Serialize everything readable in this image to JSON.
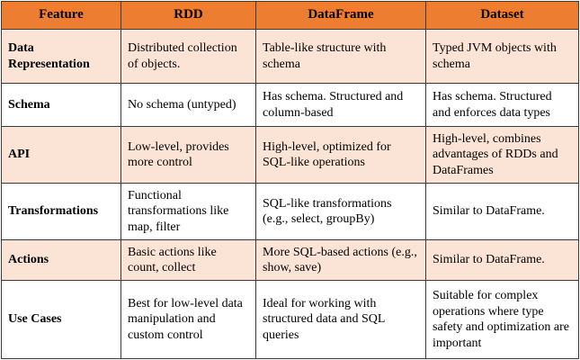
{
  "headers": [
    "Feature",
    "RDD",
    "DataFrame",
    "Dataset"
  ],
  "rows": [
    {
      "feature": "Data Representation",
      "rdd": "Distributed collection of objects.",
      "dataframe": "Table-like structure with schema",
      "dataset": "Typed JVM objects with schema"
    },
    {
      "feature": "Schema",
      "rdd": "No schema (untyped)",
      "dataframe": "Has schema. Structured and column-based",
      "dataset": "Has schema. Structured and enforces data types"
    },
    {
      "feature": "API",
      "rdd": "Low-level, provides more control",
      "dataframe": "High-level, optimized for SQL-like operations",
      "dataset": "High-level, combines advantages of RDDs and DataFrames"
    },
    {
      "feature": "Transformations",
      "rdd": "Functional transformations like map, filter",
      "dataframe": "SQL-like transformations (e.g., select, groupBy)",
      "dataset": "Similar to DataFrame."
    },
    {
      "feature": "Actions",
      "rdd": "Basic actions like count, collect",
      "dataframe": "More SQL-based actions (e.g., show, save)",
      "dataset": "Similar to DataFrame."
    },
    {
      "feature": "Use Cases",
      "rdd": "Best for low-level data manipulation and custom control",
      "dataframe": "Ideal for working with structured data and SQL queries",
      "dataset": "Suitable for complex operations where type safety and optimization are important"
    }
  ],
  "colors": {
    "header_bg": "#ed7d31",
    "shaded_row_bg": "#fbe4d5",
    "plain_row_bg": "#ffffff",
    "border": "#3a3a3a"
  }
}
